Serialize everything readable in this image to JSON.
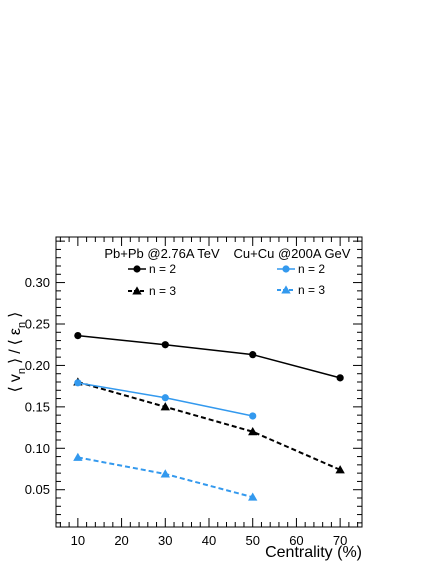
{
  "chart_data": {
    "type": "line",
    "xlabel": "Centrality (%)",
    "ylabel": "⟨ vn ⟩ / ⟨ εn ⟩",
    "ylabel_parts": {
      "open1": "⟨",
      "v": "v",
      "n1": "n",
      "close1": "⟩",
      "slash": "/",
      "open2": "⟨",
      "eps": "ε",
      "n2": "n",
      "close2": "⟩"
    },
    "xlim": [
      5,
      75
    ],
    "ylim": [
      0.005,
      0.355
    ],
    "x_ticks": [
      "10",
      "20",
      "30",
      "40",
      "50",
      "60",
      "70"
    ],
    "y_ticks": [
      "0.05",
      "0.10",
      "0.15",
      "0.20",
      "0.25",
      "0.30"
    ],
    "legend_groups": [
      {
        "title": "Pb+Pb @2.76A TeV"
      },
      {
        "title": "Cu+Cu @200A GeV"
      }
    ],
    "series": [
      {
        "name": "n = 2",
        "group": 0,
        "color": "#000000",
        "marker": "circle",
        "dashed": false,
        "x": [
          10,
          30,
          50,
          70
        ],
        "values": [
          0.236,
          0.225,
          0.213,
          0.185
        ]
      },
      {
        "name": "n = 3",
        "group": 0,
        "color": "#000000",
        "marker": "triangle",
        "dashed": true,
        "x": [
          10,
          30,
          50,
          70
        ],
        "values": [
          0.18,
          0.15,
          0.12,
          0.074
        ]
      },
      {
        "name": "n = 2",
        "group": 1,
        "color": "#3399ee",
        "marker": "circle",
        "dashed": false,
        "x": [
          10,
          30,
          50
        ],
        "values": [
          0.179,
          0.161,
          0.139
        ]
      },
      {
        "name": "n = 3",
        "group": 1,
        "color": "#3399ee",
        "marker": "triangle",
        "dashed": true,
        "x": [
          10,
          30,
          50
        ],
        "values": [
          0.089,
          0.069,
          0.041
        ]
      }
    ]
  }
}
